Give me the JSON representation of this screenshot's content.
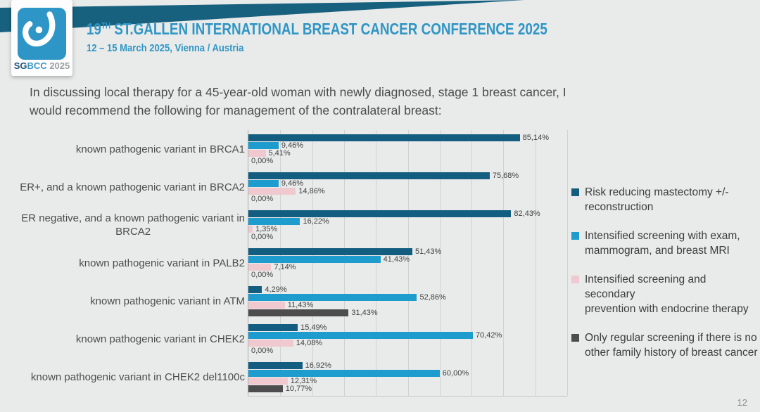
{
  "header": {
    "title_num": "19",
    "title_sup": "TH",
    "title_rest": " ST.GALLEN INTERNATIONAL BREAST CANCER CONFERENCE 2025",
    "subtitle": "12 – 15 March 2025, Vienna / Austria",
    "logo": {
      "sg": "SG",
      "bcc": "BCC",
      "year": " 2025",
      "icon": "sgbcc-breast-logo"
    },
    "colors": {
      "band": "#17617f",
      "accent_blue": "#2f96c5",
      "logo_blue": "#2e96c6"
    }
  },
  "question": {
    "text": "In discussing local therapy for a 45-year-old woman with newly diagnosed, stage 1 breast cancer,  I\nwould recommend the following for management of the contralateral breast:"
  },
  "chart_data": {
    "type": "bar",
    "orientation": "horizontal",
    "title": "",
    "xlabel": "",
    "ylabel": "",
    "xlim": [
      0,
      100
    ],
    "gridline_step_pct": 10,
    "grid": true,
    "legend_position": "right",
    "value_label_format": "comma-decimal percent",
    "categories": [
      "known pathogenic variant in BRCA1",
      "ER+, and a known pathogenic variant in BRCA2",
      "ER negative, and a known pathogenic variant in\nBRCA2",
      "known pathogenic variant in PALB2",
      "known pathogenic variant in ATM",
      "known pathogenic variant in CHEK2",
      "known pathogenic variant in CHEK2 del1100c"
    ],
    "series": [
      {
        "name": "Risk reducing mastectomy +/- reconstruction",
        "color": "#135e80",
        "values": [
          85.14,
          75.68,
          82.43,
          51.43,
          4.29,
          15.49,
          16.92
        ],
        "labels": [
          "85,14%",
          "75,68%",
          "82,43%",
          "51,43%",
          "4,29%",
          "15,49%",
          "16,92%"
        ]
      },
      {
        "name": "Intensified screening with exam, mammogram, and breast MRI",
        "color": "#1e9ccd",
        "values": [
          9.46,
          9.46,
          16.22,
          41.43,
          52.86,
          70.42,
          60.0
        ],
        "labels": [
          "9,46%",
          "9,46%",
          "16,22%",
          "41,43%",
          "52,86%",
          "70,42%",
          "60,00%"
        ]
      },
      {
        "name": "Intensified screening and secondary prevention with endocrine therapy",
        "color": "#efc9cf",
        "values": [
          5.41,
          14.86,
          1.35,
          7.14,
          11.43,
          14.08,
          12.31
        ],
        "labels": [
          "5,41%",
          "14,86%",
          "1,35%",
          "7,14%",
          "11,43%",
          "14,08%",
          "12,31%"
        ]
      },
      {
        "name": "Only regular screening if there is no other family history of breast cancer",
        "color": "#4d4d4d",
        "values": [
          0.0,
          0.0,
          0.0,
          0.0,
          31.43,
          0.0,
          10.77
        ],
        "labels": [
          "0,00%",
          "0,00%",
          "0,00%",
          "0,00%",
          "31,43%",
          "0,00%",
          "10,77%"
        ]
      }
    ]
  },
  "legend": {
    "items": [
      {
        "text": "Risk reducing mastectomy +/-\nreconstruction"
      },
      {
        "text": "Intensified screening with exam,\nmammogram, and breast MRI"
      },
      {
        "text": "Intensified screening and secondary\nprevention with endocrine therapy"
      },
      {
        "text": "Only regular screening if there is no\nother family history of breast cancer"
      }
    ]
  },
  "footer": {
    "page_number": "12"
  }
}
